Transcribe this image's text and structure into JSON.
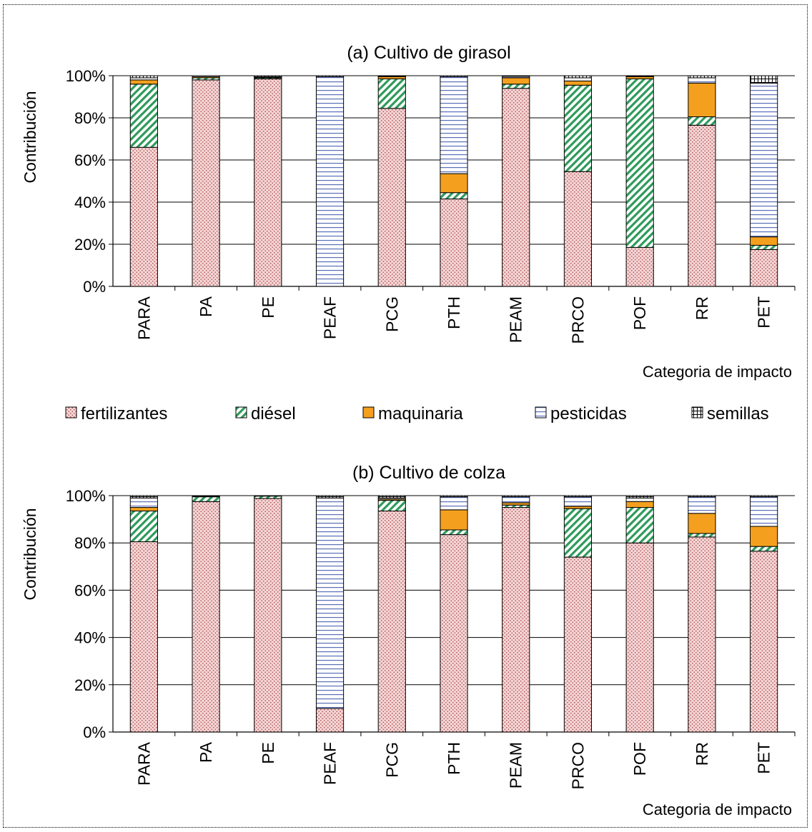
{
  "colors": {
    "fertilizantes": "#f4d6d6",
    "fertilizantes_dot": "#b85a5a",
    "diesel": "#ffffff",
    "diesel_hatch": "#2e9a5a",
    "maquinaria": "#f4a01e",
    "pesticidas": "#ffffff",
    "pesticidas_line": "#5a6fb8",
    "semillas": "#ffffff",
    "semillas_line": "#000000"
  },
  "legend": [
    {
      "key": "fertilizantes",
      "label": "fertilizantes"
    },
    {
      "key": "diesel",
      "label": "diésel"
    },
    {
      "key": "maquinaria",
      "label": "maquinaria"
    },
    {
      "key": "pesticidas",
      "label": "pesticidas"
    },
    {
      "key": "semillas",
      "label": "semillas"
    }
  ],
  "chart_data": [
    {
      "type": "bar",
      "stacked": true,
      "title": "(a) Cultivo de girasol",
      "xlabel": "Categoria de impacto",
      "ylabel": "Contribución",
      "ylim": [
        0,
        100
      ],
      "yticks": [
        "0%",
        "20%",
        "40%",
        "60%",
        "80%",
        "100%"
      ],
      "grid": true,
      "categories": [
        "PARA",
        "PA",
        "PE",
        "PEAF",
        "PCG",
        "PTH",
        "PEAM",
        "PRCO",
        "POF",
        "RR",
        "PET"
      ],
      "series": [
        {
          "name": "fertilizantes",
          "key": "fertilizantes",
          "values": [
            66,
            98,
            98.5,
            0,
            84.5,
            41.5,
            94,
            54.5,
            18.5,
            76.5,
            17.5
          ]
        },
        {
          "name": "diésel",
          "key": "diesel",
          "values": [
            30,
            1,
            0.5,
            0,
            14,
            3,
            2,
            41,
            80,
            4,
            2
          ]
        },
        {
          "name": "maquinaria",
          "key": "maquinaria",
          "values": [
            2,
            0.5,
            0.3,
            0,
            1,
            9,
            3,
            2,
            1,
            16,
            4
          ]
        },
        {
          "name": "pesticidas",
          "key": "pesticidas",
          "values": [
            1,
            0.5,
            0.2,
            99.5,
            0.3,
            46,
            0.7,
            1.5,
            0.3,
            2.5,
            73
          ]
        },
        {
          "name": "semillas",
          "key": "semillas",
          "values": [
            1,
            0,
            0.5,
            0.5,
            0.2,
            0.5,
            0.3,
            1,
            0.2,
            1,
            3.5
          ]
        }
      ]
    },
    {
      "type": "bar",
      "stacked": true,
      "title": "(b) Cultivo de colza",
      "xlabel": "Categoria de impacto",
      "ylabel": "Contribución",
      "ylim": [
        0,
        100
      ],
      "yticks": [
        "0%",
        "20%",
        "40%",
        "60%",
        "80%",
        "100%"
      ],
      "grid": true,
      "categories": [
        "PARA",
        "PA",
        "PE",
        "PEAF",
        "PCG",
        "PTH",
        "PEAM",
        "PRCO",
        "POF",
        "RR",
        "PET"
      ],
      "series": [
        {
          "name": "fertilizantes",
          "key": "fertilizantes",
          "values": [
            80.5,
            97.5,
            98.8,
            10,
            93.5,
            83.5,
            95,
            74,
            80,
            82.5,
            76.5
          ]
        },
        {
          "name": "diésel",
          "key": "diesel",
          "values": [
            13,
            2,
            1,
            0,
            4.5,
            2,
            1,
            20.5,
            15,
            1.5,
            2
          ]
        },
        {
          "name": "maquinaria",
          "key": "maquinaria",
          "values": [
            1.5,
            0.3,
            0.1,
            0,
            0.5,
            8.5,
            1,
            1,
            2.5,
            8.5,
            8.5
          ]
        },
        {
          "name": "pesticidas",
          "key": "pesticidas",
          "values": [
            4,
            0.2,
            0.1,
            89,
            0.5,
            5.5,
            2.5,
            4,
            1.5,
            7,
            12.5
          ]
        },
        {
          "name": "semillas",
          "key": "semillas",
          "values": [
            1,
            0,
            0,
            1,
            1,
            0.5,
            0.5,
            0.5,
            1,
            0.5,
            0.5
          ]
        }
      ]
    }
  ]
}
